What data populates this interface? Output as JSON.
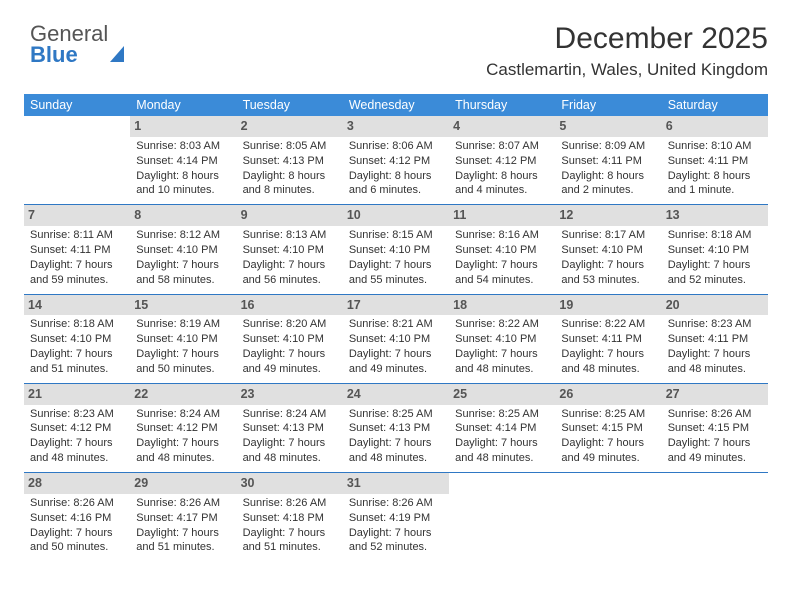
{
  "brand": {
    "part1": "General",
    "part2": "Blue"
  },
  "header": {
    "title": "December 2025",
    "location": "Castlemartin, Wales, United Kingdom"
  },
  "colors": {
    "header_bg": "#3b8bd8",
    "daynum_bg": "#e0e0e0",
    "divider": "#2f78c4",
    "brand_blue": "#2f78c4"
  },
  "dayNames": [
    "Sunday",
    "Monday",
    "Tuesday",
    "Wednesday",
    "Thursday",
    "Friday",
    "Saturday"
  ],
  "weeks": [
    [
      {
        "n": "",
        "empty": true
      },
      {
        "n": "1",
        "sr": "Sunrise: 8:03 AM",
        "ss": "Sunset: 4:14 PM",
        "dl1": "Daylight: 8 hours",
        "dl2": "and 10 minutes."
      },
      {
        "n": "2",
        "sr": "Sunrise: 8:05 AM",
        "ss": "Sunset: 4:13 PM",
        "dl1": "Daylight: 8 hours",
        "dl2": "and 8 minutes."
      },
      {
        "n": "3",
        "sr": "Sunrise: 8:06 AM",
        "ss": "Sunset: 4:12 PM",
        "dl1": "Daylight: 8 hours",
        "dl2": "and 6 minutes."
      },
      {
        "n": "4",
        "sr": "Sunrise: 8:07 AM",
        "ss": "Sunset: 4:12 PM",
        "dl1": "Daylight: 8 hours",
        "dl2": "and 4 minutes."
      },
      {
        "n": "5",
        "sr": "Sunrise: 8:09 AM",
        "ss": "Sunset: 4:11 PM",
        "dl1": "Daylight: 8 hours",
        "dl2": "and 2 minutes."
      },
      {
        "n": "6",
        "sr": "Sunrise: 8:10 AM",
        "ss": "Sunset: 4:11 PM",
        "dl1": "Daylight: 8 hours",
        "dl2": "and 1 minute."
      }
    ],
    [
      {
        "n": "7",
        "sr": "Sunrise: 8:11 AM",
        "ss": "Sunset: 4:11 PM",
        "dl1": "Daylight: 7 hours",
        "dl2": "and 59 minutes."
      },
      {
        "n": "8",
        "sr": "Sunrise: 8:12 AM",
        "ss": "Sunset: 4:10 PM",
        "dl1": "Daylight: 7 hours",
        "dl2": "and 58 minutes."
      },
      {
        "n": "9",
        "sr": "Sunrise: 8:13 AM",
        "ss": "Sunset: 4:10 PM",
        "dl1": "Daylight: 7 hours",
        "dl2": "and 56 minutes."
      },
      {
        "n": "10",
        "sr": "Sunrise: 8:15 AM",
        "ss": "Sunset: 4:10 PM",
        "dl1": "Daylight: 7 hours",
        "dl2": "and 55 minutes."
      },
      {
        "n": "11",
        "sr": "Sunrise: 8:16 AM",
        "ss": "Sunset: 4:10 PM",
        "dl1": "Daylight: 7 hours",
        "dl2": "and 54 minutes."
      },
      {
        "n": "12",
        "sr": "Sunrise: 8:17 AM",
        "ss": "Sunset: 4:10 PM",
        "dl1": "Daylight: 7 hours",
        "dl2": "and 53 minutes."
      },
      {
        "n": "13",
        "sr": "Sunrise: 8:18 AM",
        "ss": "Sunset: 4:10 PM",
        "dl1": "Daylight: 7 hours",
        "dl2": "and 52 minutes."
      }
    ],
    [
      {
        "n": "14",
        "sr": "Sunrise: 8:18 AM",
        "ss": "Sunset: 4:10 PM",
        "dl1": "Daylight: 7 hours",
        "dl2": "and 51 minutes."
      },
      {
        "n": "15",
        "sr": "Sunrise: 8:19 AM",
        "ss": "Sunset: 4:10 PM",
        "dl1": "Daylight: 7 hours",
        "dl2": "and 50 minutes."
      },
      {
        "n": "16",
        "sr": "Sunrise: 8:20 AM",
        "ss": "Sunset: 4:10 PM",
        "dl1": "Daylight: 7 hours",
        "dl2": "and 49 minutes."
      },
      {
        "n": "17",
        "sr": "Sunrise: 8:21 AM",
        "ss": "Sunset: 4:10 PM",
        "dl1": "Daylight: 7 hours",
        "dl2": "and 49 minutes."
      },
      {
        "n": "18",
        "sr": "Sunrise: 8:22 AM",
        "ss": "Sunset: 4:10 PM",
        "dl1": "Daylight: 7 hours",
        "dl2": "and 48 minutes."
      },
      {
        "n": "19",
        "sr": "Sunrise: 8:22 AM",
        "ss": "Sunset: 4:11 PM",
        "dl1": "Daylight: 7 hours",
        "dl2": "and 48 minutes."
      },
      {
        "n": "20",
        "sr": "Sunrise: 8:23 AM",
        "ss": "Sunset: 4:11 PM",
        "dl1": "Daylight: 7 hours",
        "dl2": "and 48 minutes."
      }
    ],
    [
      {
        "n": "21",
        "sr": "Sunrise: 8:23 AM",
        "ss": "Sunset: 4:12 PM",
        "dl1": "Daylight: 7 hours",
        "dl2": "and 48 minutes."
      },
      {
        "n": "22",
        "sr": "Sunrise: 8:24 AM",
        "ss": "Sunset: 4:12 PM",
        "dl1": "Daylight: 7 hours",
        "dl2": "and 48 minutes."
      },
      {
        "n": "23",
        "sr": "Sunrise: 8:24 AM",
        "ss": "Sunset: 4:13 PM",
        "dl1": "Daylight: 7 hours",
        "dl2": "and 48 minutes."
      },
      {
        "n": "24",
        "sr": "Sunrise: 8:25 AM",
        "ss": "Sunset: 4:13 PM",
        "dl1": "Daylight: 7 hours",
        "dl2": "and 48 minutes."
      },
      {
        "n": "25",
        "sr": "Sunrise: 8:25 AM",
        "ss": "Sunset: 4:14 PM",
        "dl1": "Daylight: 7 hours",
        "dl2": "and 48 minutes."
      },
      {
        "n": "26",
        "sr": "Sunrise: 8:25 AM",
        "ss": "Sunset: 4:15 PM",
        "dl1": "Daylight: 7 hours",
        "dl2": "and 49 minutes."
      },
      {
        "n": "27",
        "sr": "Sunrise: 8:26 AM",
        "ss": "Sunset: 4:15 PM",
        "dl1": "Daylight: 7 hours",
        "dl2": "and 49 minutes."
      }
    ],
    [
      {
        "n": "28",
        "sr": "Sunrise: 8:26 AM",
        "ss": "Sunset: 4:16 PM",
        "dl1": "Daylight: 7 hours",
        "dl2": "and 50 minutes."
      },
      {
        "n": "29",
        "sr": "Sunrise: 8:26 AM",
        "ss": "Sunset: 4:17 PM",
        "dl1": "Daylight: 7 hours",
        "dl2": "and 51 minutes."
      },
      {
        "n": "30",
        "sr": "Sunrise: 8:26 AM",
        "ss": "Sunset: 4:18 PM",
        "dl1": "Daylight: 7 hours",
        "dl2": "and 51 minutes."
      },
      {
        "n": "31",
        "sr": "Sunrise: 8:26 AM",
        "ss": "Sunset: 4:19 PM",
        "dl1": "Daylight: 7 hours",
        "dl2": "and 52 minutes."
      },
      {
        "n": "",
        "empty": true
      },
      {
        "n": "",
        "empty": true
      },
      {
        "n": "",
        "empty": true
      }
    ]
  ]
}
